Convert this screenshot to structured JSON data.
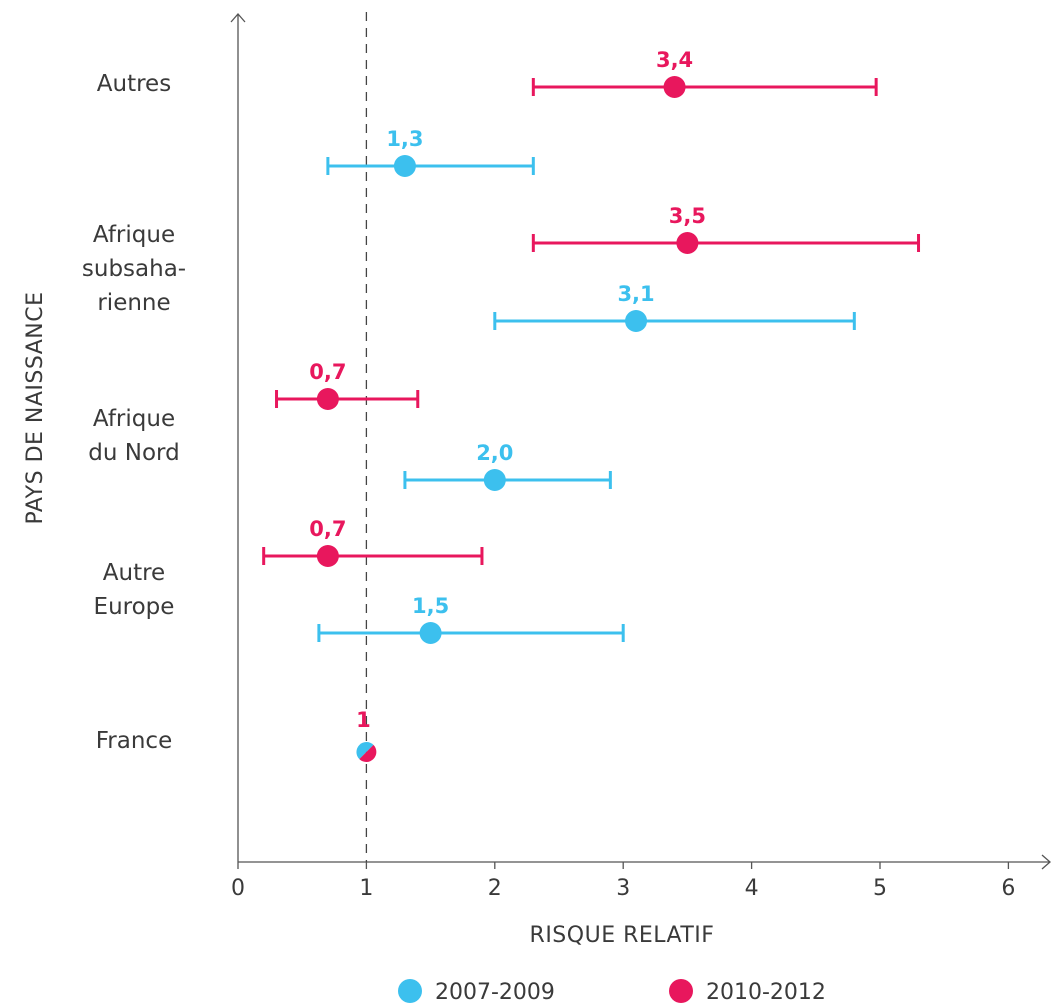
{
  "chart_data": {
    "type": "forest",
    "xlabel": "RISQUE RELATIF",
    "ylabel": "PAYS DE NAISSANCE",
    "xlim": [
      0,
      6
    ],
    "x_ticks": [
      "0",
      "1",
      "2",
      "3",
      "4",
      "5",
      "6"
    ],
    "reference_line": 1,
    "categories": [
      {
        "lines": [
          "Autres"
        ]
      },
      {
        "lines": [
          "Afrique",
          "subsaha-",
          "rienne"
        ]
      },
      {
        "lines": [
          "Afrique",
          "du Nord"
        ]
      },
      {
        "lines": [
          "Autre",
          "Europe"
        ]
      },
      {
        "lines": [
          "France"
        ]
      }
    ],
    "series": [
      {
        "name": "2007-2009",
        "color": "#3cc0ee",
        "points": [
          {
            "category": "Autres",
            "value": 1.3,
            "label": "1,3",
            "low": 0.7,
            "high": 2.3
          },
          {
            "category": "Afrique subsaharienne",
            "value": 3.1,
            "label": "3,1",
            "low": 2.0,
            "high": 4.8
          },
          {
            "category": "Afrique du Nord",
            "value": 2.0,
            "label": "2,0",
            "low": 1.3,
            "high": 2.9
          },
          {
            "category": "Autre Europe",
            "value": 1.5,
            "label": "1,5",
            "low": 0.63,
            "high": 3.0
          }
        ]
      },
      {
        "name": "2010-2012",
        "color": "#e8175d",
        "points": [
          {
            "category": "Autres",
            "value": 3.4,
            "label": "3,4",
            "low": 2.3,
            "high": 4.97
          },
          {
            "category": "Afrique subsaharienne",
            "value": 3.5,
            "label": "3,5",
            "low": 2.3,
            "high": 5.3
          },
          {
            "category": "Afrique du Nord",
            "value": 0.7,
            "label": "0,7",
            "low": 0.3,
            "high": 1.4
          },
          {
            "category": "Autre Europe",
            "value": 0.7,
            "label": "0,7",
            "low": 0.2,
            "high": 1.9
          }
        ]
      }
    ],
    "reference": {
      "category": "France",
      "value": 1,
      "label": "1"
    },
    "legend": {
      "placement": "bottom",
      "items": [
        "2007-2009",
        "2010-2012"
      ]
    },
    "grid": false
  }
}
